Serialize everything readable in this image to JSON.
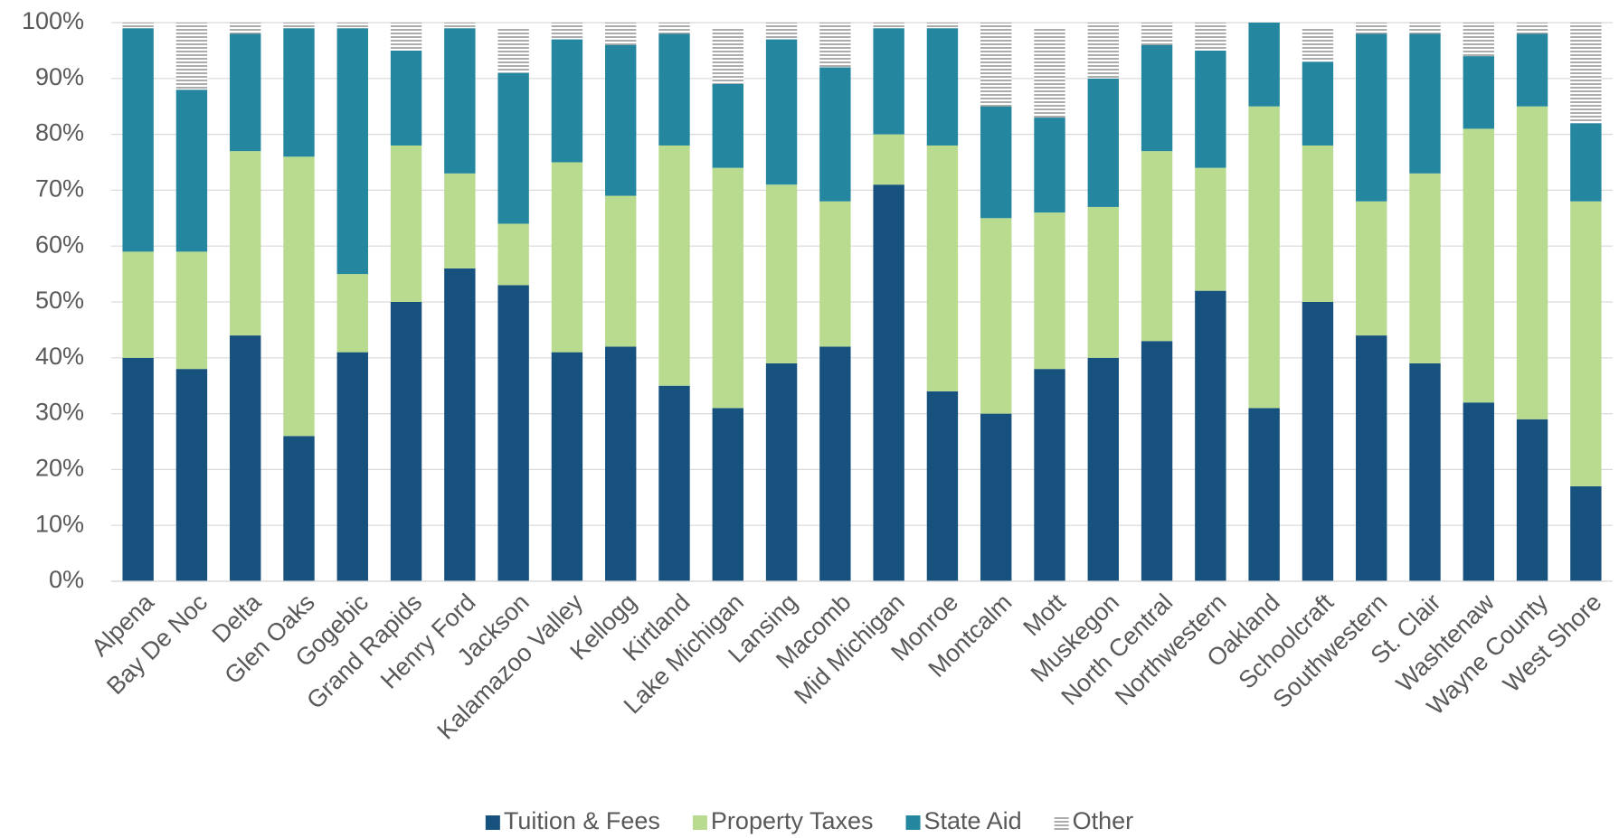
{
  "chart_data": {
    "type": "stacked_bar",
    "categories": [
      "Alpena",
      "Bay De Noc",
      "Delta",
      "Glen Oaks",
      "Gogebic",
      "Grand Rapids",
      "Henry Ford",
      "Jackson",
      "Kalamazoo Valley",
      "Kellogg",
      "Kirtland",
      "Lake Michigan",
      "Lansing",
      "Macomb",
      "Mid Michigan",
      "Monroe",
      "Montcalm",
      "Mott",
      "Muskegon",
      "North Central",
      "Northwestern",
      "Oakland",
      "Schoolcraft",
      "Southwestern",
      "St. Clair",
      "Washtenaw",
      "Wayne County",
      "West Shore"
    ],
    "series": [
      {
        "name": "Tuition & Fees",
        "color": "#17527f",
        "values": [
          40,
          38,
          44,
          26,
          41,
          50,
          56,
          53,
          41,
          42,
          35,
          31,
          39,
          42,
          71,
          34,
          30,
          38,
          40,
          43,
          52,
          31,
          50,
          44,
          39,
          32,
          29,
          17
        ]
      },
      {
        "name": "Property Taxes",
        "color": "#b9db90",
        "values": [
          19,
          21,
          33,
          50,
          14,
          28,
          17,
          11,
          34,
          27,
          43,
          43,
          32,
          26,
          9,
          44,
          35,
          28,
          27,
          34,
          22,
          54,
          28,
          24,
          34,
          49,
          56,
          51
        ]
      },
      {
        "name": "State Aid",
        "color": "#25879f",
        "values": [
          40,
          29,
          21,
          23,
          44,
          17,
          26,
          27,
          22,
          27,
          20,
          15,
          26,
          24,
          19,
          21,
          20,
          17,
          23,
          19,
          21,
          15,
          15,
          30,
          25,
          13,
          13,
          14
        ]
      },
      {
        "name": "Other",
        "color": "#7f7f7f",
        "hatch": true,
        "values": [
          1,
          12,
          2,
          1,
          1,
          5,
          1,
          8,
          3,
          4,
          2,
          10,
          3,
          8,
          1,
          1,
          15,
          16,
          10,
          4,
          5,
          0,
          6,
          2,
          2,
          6,
          2,
          18
        ]
      }
    ],
    "ylim": [
      0,
      100
    ],
    "yticks": [
      {
        "value": 0,
        "label": "0%"
      },
      {
        "value": 10,
        "label": "10%"
      },
      {
        "value": 20,
        "label": "20%"
      },
      {
        "value": 30,
        "label": "30%"
      },
      {
        "value": 40,
        "label": "40%"
      },
      {
        "value": 50,
        "label": "50%"
      },
      {
        "value": 60,
        "label": "60%"
      },
      {
        "value": 70,
        "label": "70%"
      },
      {
        "value": 80,
        "label": "80%"
      },
      {
        "value": 90,
        "label": "90%"
      },
      {
        "value": 100,
        "label": "100%"
      }
    ],
    "grid": true,
    "legend": "bottom"
  }
}
